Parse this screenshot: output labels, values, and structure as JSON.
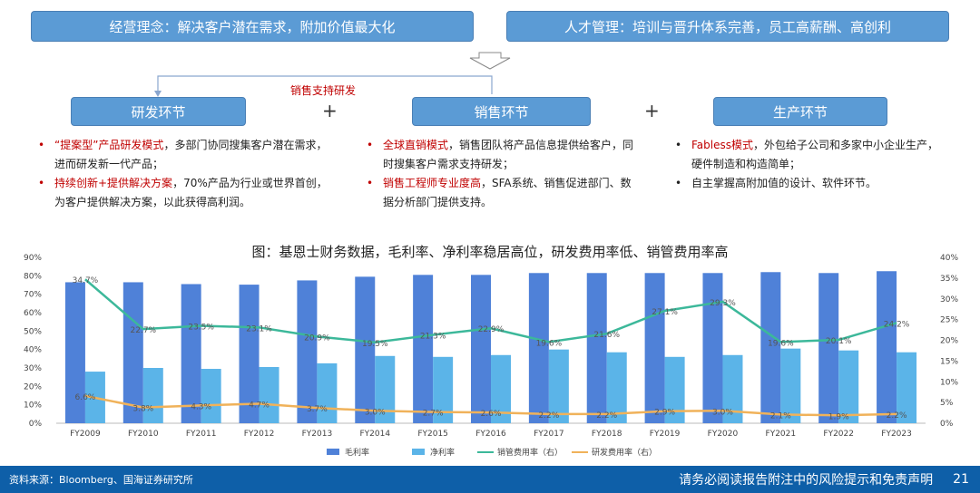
{
  "banners": {
    "left": "经营理念：解决客户潜在需求，附加价值最大化",
    "right": "人才管理：培训与晋升体系完善，员工高薪酬、高创利"
  },
  "arrow_label": "销售支持研发",
  "boxes": {
    "rd": "研发环节",
    "sales": "销售环节",
    "prod": "生产环节"
  },
  "plus": "+",
  "bullets": {
    "rd": [
      {
        "red": "“提案型”产品研发模式",
        "text": "，多部门协同搜集客户潜在需求，进而研发新一代产品；"
      },
      {
        "red": "持续创新+提供解决方案",
        "text": "，70%产品为行业或世界首创，为客户提供解决方案，以此获得高利润。"
      }
    ],
    "sales": [
      {
        "red": "全球直销模式",
        "text": "，销售团队将产品信息提供给客户，同时搜集客户需求支持研发；"
      },
      {
        "red": "销售工程师专业度高",
        "text": "，SFA系统、销售促进部门、数据分析部门提供支持。"
      }
    ],
    "prod": [
      {
        "red": "Fabless模式",
        "text": "，外包给子公司和多家中小企业生产，硬件制造和构造简单；"
      },
      {
        "red": "",
        "text": "自主掌握高附加值的设计、软件环节。"
      }
    ]
  },
  "chart_data": {
    "type": "bar",
    "title": "图：基恩士财务数据，毛利率、净利率稳居高位，研发费用率低、销管费用率高",
    "categories": [
      "FY2009",
      "FY2010",
      "FY2011",
      "FY2012",
      "FY2013",
      "FY2014",
      "FY2015",
      "FY2016",
      "FY2017",
      "FY2018",
      "FY2019",
      "FY2020",
      "FY2021",
      "FY2022",
      "FY2023"
    ],
    "y_left": {
      "ylim": [
        0,
        90
      ],
      "ticks": [
        "0%",
        "10%",
        "20%",
        "30%",
        "40%",
        "50%",
        "60%",
        "70%",
        "80%",
        "90%"
      ]
    },
    "y_right": {
      "ylim": [
        0,
        40
      ],
      "ticks": [
        "0%",
        "5%",
        "10%",
        "15%",
        "20%",
        "25%",
        "30%",
        "35%",
        "40%"
      ]
    },
    "series": [
      {
        "name": "毛利率",
        "kind": "bar",
        "axis": "left",
        "color": "#4f81d8",
        "values": [
          76.5,
          76.5,
          75.5,
          75.2,
          77.5,
          79.5,
          80.5,
          80.5,
          81.5,
          81.5,
          81.5,
          81.5,
          82,
          81.5,
          82.5
        ]
      },
      {
        "name": "净利率",
        "kind": "bar",
        "axis": "left",
        "color": "#5bb4e8",
        "values": [
          28,
          30,
          29.5,
          30.5,
          32.5,
          36.5,
          36,
          37,
          40,
          38.5,
          36,
          37,
          40.5,
          39.5,
          38.5
        ]
      },
      {
        "name": "销管费用率（右）",
        "kind": "line",
        "axis": "right",
        "color": "#3cb89a",
        "values": [
          34.7,
          22.7,
          23.5,
          23.1,
          20.9,
          19.5,
          21.3,
          22.9,
          19.6,
          21.6,
          27.1,
          29.3,
          19.6,
          20.1,
          24.2
        ],
        "labels": [
          "34.7%",
          "22.7%",
          "23.5%",
          "23.1%",
          "20.9%",
          "19.5%",
          "21.3%",
          "22.9%",
          "19.6%",
          "21.6%",
          "27.1%",
          "29.3%",
          "19.6%",
          "20.1%",
          "24.2%"
        ]
      },
      {
        "name": "研发费用率（右）",
        "kind": "line",
        "axis": "right",
        "color": "#f0b25a",
        "values": [
          6.6,
          3.8,
          4.3,
          4.7,
          3.7,
          3.0,
          2.7,
          2.6,
          2.2,
          2.2,
          2.9,
          3.0,
          2.1,
          1.9,
          2.2
        ],
        "labels": [
          "6.6%",
          "3.8%",
          "4.3%",
          "4.7%",
          "3.7%",
          "3.0%",
          "2.7%",
          "2.6%",
          "2.2%",
          "2.2%",
          "2.9%",
          "3.0%",
          "2.1%",
          "1.9%",
          "2.2%"
        ]
      }
    ],
    "legend_position": "bottom",
    "grid": false
  },
  "footer": {
    "source": "资料来源：Bloomberg、国海证券研究所",
    "disclaimer": "请务必阅读报告附注中的风险提示和免责声明",
    "page": "21"
  }
}
